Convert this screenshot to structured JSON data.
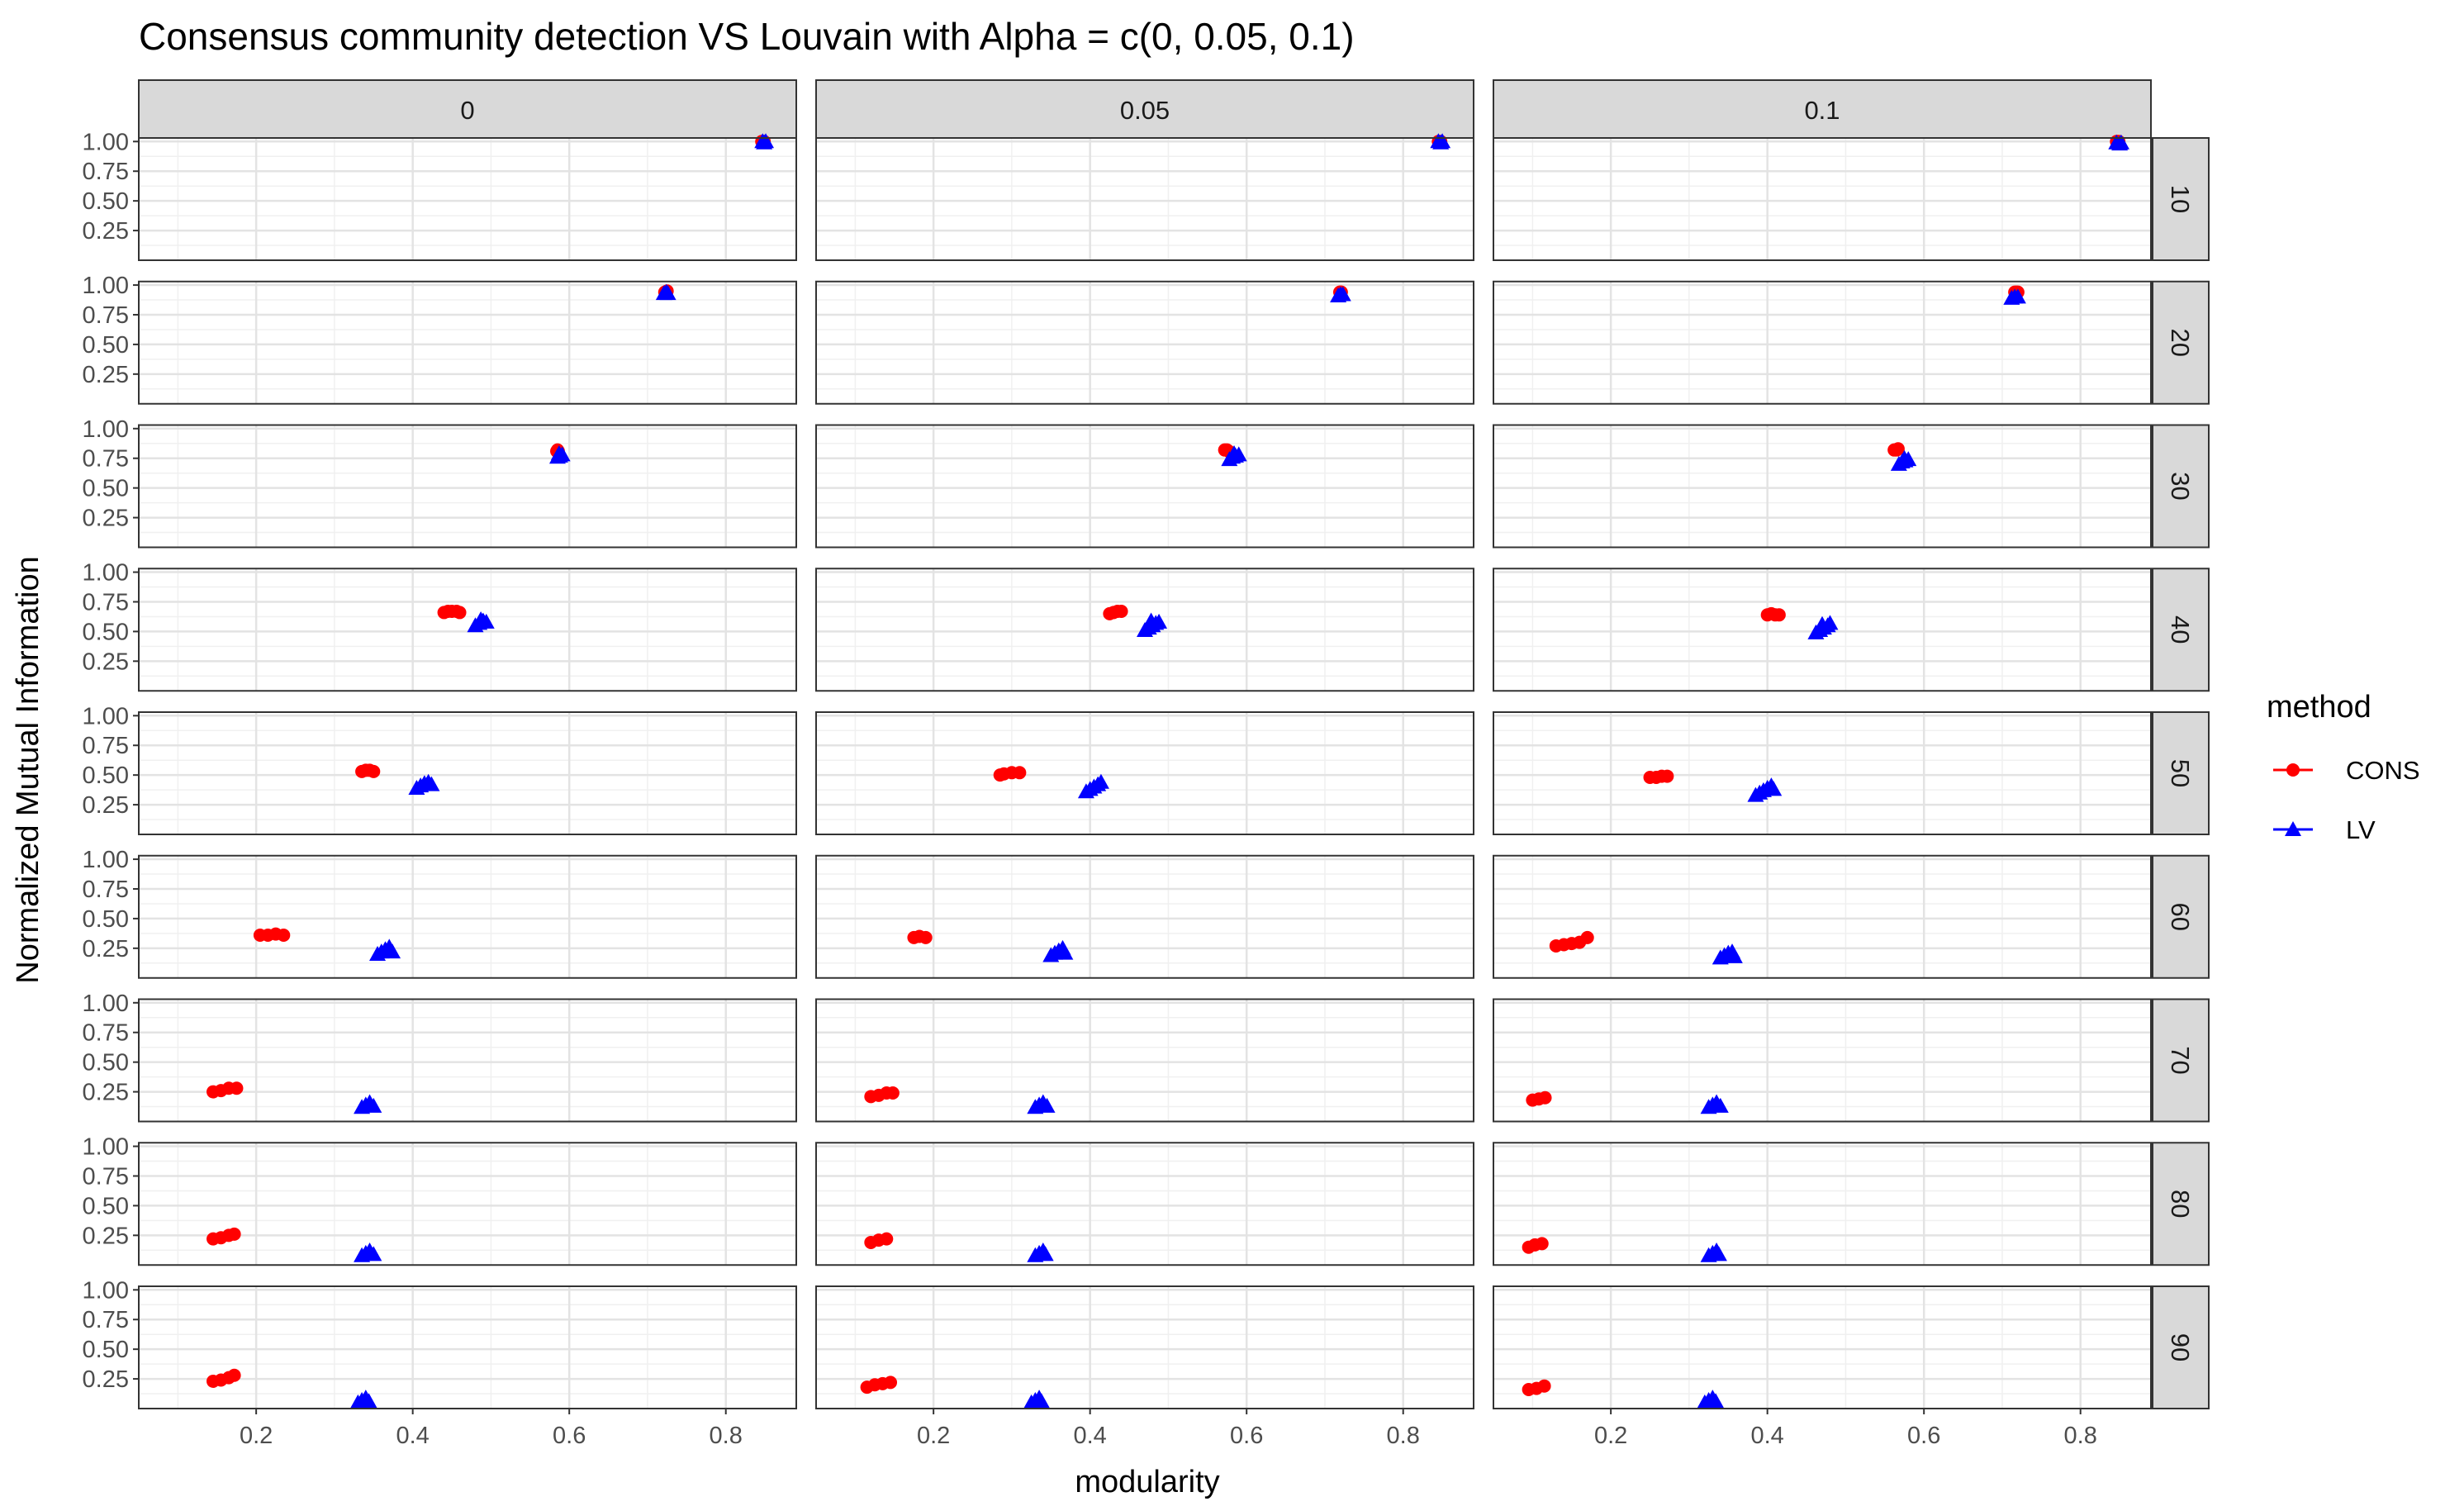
{
  "chart_data": {
    "type": "scatter",
    "title": "Consensus community detection VS Louvain with Alpha = c(0, 0.05, 0.1)",
    "xlabel": "modularity",
    "ylabel": "Normalized Mutual Information",
    "xlim": [
      0.05,
      0.89
    ],
    "ylim": [
      0.0,
      1.03
    ],
    "x_ticks": [
      "0.2",
      "0.4",
      "0.6",
      "0.8"
    ],
    "x_tick_values": [
      0.2,
      0.4,
      0.6,
      0.8
    ],
    "y_ticks": [
      "0.25",
      "0.50",
      "0.75",
      "1.00"
    ],
    "y_tick_values": [
      0.25,
      0.5,
      0.75,
      1.0
    ],
    "grid": true,
    "legend": {
      "title": "method",
      "position": "right",
      "entries": [
        {
          "name": "CONS",
          "color": "#ff0000",
          "shape": "circle"
        },
        {
          "name": "LV",
          "color": "#0000ff",
          "shape": "triangle"
        }
      ]
    },
    "col_facets": [
      "0",
      "0.05",
      "0.1"
    ],
    "row_facets": [
      "10",
      "20",
      "30",
      "40",
      "50",
      "60",
      "70",
      "80",
      "90"
    ],
    "series": [
      {
        "method": "CONS",
        "panels": [
          [
            {
              "x": 0.846,
              "y": 1.0
            },
            {
              "x": 0.846,
              "y": 1.0
            },
            {
              "x": 0.849,
              "y": 1.0
            }
          ],
          [
            {
              "x": 0.846,
              "y": 1.0
            },
            {
              "x": 0.845,
              "y": 1.0
            },
            {
              "x": 0.848,
              "y": 1.0
            }
          ],
          [
            {
              "x": 0.847,
              "y": 1.0
            },
            {
              "x": 0.846,
              "y": 1.0
            },
            {
              "x": 0.849,
              "y": 1.0
            }
          ],
          [
            {
              "x": 0.724,
              "y": 0.94
            },
            {
              "x": 0.722,
              "y": 0.94
            },
            {
              "x": 0.725,
              "y": 0.95
            }
          ],
          [
            {
              "x": 0.721,
              "y": 0.94
            },
            {
              "x": 0.72,
              "y": 0.94
            },
            {
              "x": 0.719,
              "y": 0.94
            }
          ],
          [
            {
              "x": 0.716,
              "y": 0.94
            },
            {
              "x": 0.718,
              "y": 0.94
            },
            {
              "x": 0.72,
              "y": 0.94
            }
          ],
          [
            {
              "x": 0.584,
              "y": 0.81
            },
            {
              "x": 0.586,
              "y": 0.81
            },
            {
              "x": 0.585,
              "y": 0.82
            }
          ],
          [
            {
              "x": 0.572,
              "y": 0.82
            },
            {
              "x": 0.575,
              "y": 0.82
            },
            {
              "x": 0.577,
              "y": 0.81
            }
          ],
          [
            {
              "x": 0.562,
              "y": 0.82
            },
            {
              "x": 0.565,
              "y": 0.82
            },
            {
              "x": 0.567,
              "y": 0.83
            }
          ],
          [
            {
              "x": 0.44,
              "y": 0.66
            },
            {
              "x": 0.445,
              "y": 0.67
            },
            {
              "x": 0.45,
              "y": 0.67
            },
            {
              "x": 0.456,
              "y": 0.67
            },
            {
              "x": 0.46,
              "y": 0.66
            }
          ],
          [
            {
              "x": 0.425,
              "y": 0.65
            },
            {
              "x": 0.43,
              "y": 0.66
            },
            {
              "x": 0.435,
              "y": 0.67
            },
            {
              "x": 0.44,
              "y": 0.67
            }
          ],
          [
            {
              "x": 0.4,
              "y": 0.64
            },
            {
              "x": 0.405,
              "y": 0.65
            },
            {
              "x": 0.41,
              "y": 0.64
            },
            {
              "x": 0.415,
              "y": 0.64
            }
          ],
          [
            {
              "x": 0.335,
              "y": 0.53
            },
            {
              "x": 0.34,
              "y": 0.54
            },
            {
              "x": 0.345,
              "y": 0.54
            },
            {
              "x": 0.35,
              "y": 0.53
            }
          ],
          [
            {
              "x": 0.285,
              "y": 0.5
            },
            {
              "x": 0.29,
              "y": 0.51
            },
            {
              "x": 0.3,
              "y": 0.52
            },
            {
              "x": 0.31,
              "y": 0.52
            }
          ],
          [
            {
              "x": 0.25,
              "y": 0.48
            },
            {
              "x": 0.258,
              "y": 0.48
            },
            {
              "x": 0.265,
              "y": 0.49
            },
            {
              "x": 0.272,
              "y": 0.49
            }
          ],
          [
            {
              "x": 0.205,
              "y": 0.36
            },
            {
              "x": 0.215,
              "y": 0.36
            },
            {
              "x": 0.225,
              "y": 0.37
            },
            {
              "x": 0.235,
              "y": 0.36
            }
          ],
          [
            {
              "x": 0.175,
              "y": 0.34
            },
            {
              "x": 0.182,
              "y": 0.35
            },
            {
              "x": 0.19,
              "y": 0.34
            }
          ],
          [
            {
              "x": 0.13,
              "y": 0.27
            },
            {
              "x": 0.14,
              "y": 0.28
            },
            {
              "x": 0.15,
              "y": 0.29
            },
            {
              "x": 0.16,
              "y": 0.3
            },
            {
              "x": 0.17,
              "y": 0.34
            }
          ],
          [
            {
              "x": 0.145,
              "y": 0.25
            },
            {
              "x": 0.155,
              "y": 0.26
            },
            {
              "x": 0.165,
              "y": 0.28
            },
            {
              "x": 0.175,
              "y": 0.28
            }
          ],
          [
            {
              "x": 0.12,
              "y": 0.21
            },
            {
              "x": 0.13,
              "y": 0.22
            },
            {
              "x": 0.14,
              "y": 0.24
            },
            {
              "x": 0.148,
              "y": 0.24
            }
          ],
          [
            {
              "x": 0.1,
              "y": 0.18
            },
            {
              "x": 0.108,
              "y": 0.19
            },
            {
              "x": 0.116,
              "y": 0.2
            }
          ],
          [
            {
              "x": 0.145,
              "y": 0.22
            },
            {
              "x": 0.155,
              "y": 0.23
            },
            {
              "x": 0.165,
              "y": 0.25
            },
            {
              "x": 0.172,
              "y": 0.26
            }
          ],
          [
            {
              "x": 0.12,
              "y": 0.19
            },
            {
              "x": 0.13,
              "y": 0.21
            },
            {
              "x": 0.14,
              "y": 0.22
            }
          ],
          [
            {
              "x": 0.095,
              "y": 0.15
            },
            {
              "x": 0.103,
              "y": 0.17
            },
            {
              "x": 0.112,
              "y": 0.18
            }
          ],
          [
            {
              "x": 0.145,
              "y": 0.23
            },
            {
              "x": 0.155,
              "y": 0.24
            },
            {
              "x": 0.165,
              "y": 0.26
            },
            {
              "x": 0.172,
              "y": 0.28
            }
          ],
          [
            {
              "x": 0.115,
              "y": 0.18
            },
            {
              "x": 0.125,
              "y": 0.2
            },
            {
              "x": 0.135,
              "y": 0.21
            },
            {
              "x": 0.145,
              "y": 0.22
            }
          ],
          [
            {
              "x": 0.095,
              "y": 0.16
            },
            {
              "x": 0.105,
              "y": 0.17
            },
            {
              "x": 0.115,
              "y": 0.19
            }
          ]
        ]
      },
      {
        "method": "LV",
        "panels": [
          [
            {
              "x": 0.847,
              "y": 1.0
            },
            {
              "x": 0.849,
              "y": 0.99
            },
            {
              "x": 0.851,
              "y": 1.0
            }
          ],
          [
            {
              "x": 0.845,
              "y": 1.0
            },
            {
              "x": 0.848,
              "y": 0.99
            },
            {
              "x": 0.85,
              "y": 1.0
            }
          ],
          [
            {
              "x": 0.846,
              "y": 0.99
            },
            {
              "x": 0.85,
              "y": 0.98
            },
            {
              "x": 0.852,
              "y": 0.99
            }
          ],
          [
            {
              "x": 0.721,
              "y": 0.93
            },
            {
              "x": 0.724,
              "y": 0.94
            },
            {
              "x": 0.726,
              "y": 0.93
            }
          ],
          [
            {
              "x": 0.717,
              "y": 0.91
            },
            {
              "x": 0.72,
              "y": 0.92
            },
            {
              "x": 0.723,
              "y": 0.92
            }
          ],
          [
            {
              "x": 0.712,
              "y": 0.89
            },
            {
              "x": 0.716,
              "y": 0.9
            },
            {
              "x": 0.72,
              "y": 0.9
            }
          ],
          [
            {
              "x": 0.585,
              "y": 0.76
            },
            {
              "x": 0.588,
              "y": 0.77
            },
            {
              "x": 0.591,
              "y": 0.78
            },
            {
              "x": 0.587,
              "y": 0.79
            }
          ],
          [
            {
              "x": 0.578,
              "y": 0.74
            },
            {
              "x": 0.582,
              "y": 0.76
            },
            {
              "x": 0.586,
              "y": 0.77
            },
            {
              "x": 0.59,
              "y": 0.78
            },
            {
              "x": 0.584,
              "y": 0.79
            }
          ],
          [
            {
              "x": 0.568,
              "y": 0.7
            },
            {
              "x": 0.572,
              "y": 0.72
            },
            {
              "x": 0.576,
              "y": 0.73
            },
            {
              "x": 0.58,
              "y": 0.74
            },
            {
              "x": 0.575,
              "y": 0.75
            }
          ],
          [
            {
              "x": 0.48,
              "y": 0.55
            },
            {
              "x": 0.485,
              "y": 0.57
            },
            {
              "x": 0.49,
              "y": 0.59
            },
            {
              "x": 0.494,
              "y": 0.58
            },
            {
              "x": 0.487,
              "y": 0.6
            }
          ],
          [
            {
              "x": 0.47,
              "y": 0.51
            },
            {
              "x": 0.475,
              "y": 0.53
            },
            {
              "x": 0.48,
              "y": 0.55
            },
            {
              "x": 0.484,
              "y": 0.57
            },
            {
              "x": 0.488,
              "y": 0.58
            },
            {
              "x": 0.478,
              "y": 0.59
            }
          ],
          [
            {
              "x": 0.462,
              "y": 0.49
            },
            {
              "x": 0.467,
              "y": 0.51
            },
            {
              "x": 0.472,
              "y": 0.53
            },
            {
              "x": 0.477,
              "y": 0.55
            },
            {
              "x": 0.48,
              "y": 0.57
            },
            {
              "x": 0.47,
              "y": 0.56
            }
          ],
          [
            {
              "x": 0.405,
              "y": 0.39
            },
            {
              "x": 0.41,
              "y": 0.41
            },
            {
              "x": 0.415,
              "y": 0.43
            },
            {
              "x": 0.42,
              "y": 0.44
            },
            {
              "x": 0.424,
              "y": 0.42
            }
          ],
          [
            {
              "x": 0.395,
              "y": 0.36
            },
            {
              "x": 0.4,
              "y": 0.38
            },
            {
              "x": 0.405,
              "y": 0.4
            },
            {
              "x": 0.41,
              "y": 0.42
            },
            {
              "x": 0.414,
              "y": 0.44
            }
          ],
          [
            {
              "x": 0.385,
              "y": 0.33
            },
            {
              "x": 0.39,
              "y": 0.35
            },
            {
              "x": 0.395,
              "y": 0.37
            },
            {
              "x": 0.4,
              "y": 0.39
            },
            {
              "x": 0.405,
              "y": 0.41
            },
            {
              "x": 0.408,
              "y": 0.38
            }
          ],
          [
            {
              "x": 0.355,
              "y": 0.2
            },
            {
              "x": 0.36,
              "y": 0.22
            },
            {
              "x": 0.365,
              "y": 0.24
            },
            {
              "x": 0.37,
              "y": 0.26
            },
            {
              "x": 0.374,
              "y": 0.22
            }
          ],
          [
            {
              "x": 0.35,
              "y": 0.19
            },
            {
              "x": 0.355,
              "y": 0.21
            },
            {
              "x": 0.36,
              "y": 0.23
            },
            {
              "x": 0.365,
              "y": 0.25
            },
            {
              "x": 0.368,
              "y": 0.21
            }
          ],
          [
            {
              "x": 0.34,
              "y": 0.17
            },
            {
              "x": 0.345,
              "y": 0.19
            },
            {
              "x": 0.35,
              "y": 0.21
            },
            {
              "x": 0.355,
              "y": 0.22
            },
            {
              "x": 0.358,
              "y": 0.18
            }
          ],
          [
            {
              "x": 0.335,
              "y": 0.12
            },
            {
              "x": 0.34,
              "y": 0.14
            },
            {
              "x": 0.345,
              "y": 0.16
            },
            {
              "x": 0.35,
              "y": 0.13
            }
          ],
          [
            {
              "x": 0.33,
              "y": 0.12
            },
            {
              "x": 0.335,
              "y": 0.14
            },
            {
              "x": 0.34,
              "y": 0.16
            },
            {
              "x": 0.345,
              "y": 0.13
            }
          ],
          [
            {
              "x": 0.325,
              "y": 0.12
            },
            {
              "x": 0.33,
              "y": 0.14
            },
            {
              "x": 0.335,
              "y": 0.16
            },
            {
              "x": 0.34,
              "y": 0.13
            }
          ],
          [
            {
              "x": 0.335,
              "y": 0.08
            },
            {
              "x": 0.34,
              "y": 0.1
            },
            {
              "x": 0.345,
              "y": 0.12
            },
            {
              "x": 0.35,
              "y": 0.09
            }
          ],
          [
            {
              "x": 0.33,
              "y": 0.08
            },
            {
              "x": 0.335,
              "y": 0.1
            },
            {
              "x": 0.34,
              "y": 0.12
            },
            {
              "x": 0.343,
              "y": 0.09
            }
          ],
          [
            {
              "x": 0.325,
              "y": 0.08
            },
            {
              "x": 0.33,
              "y": 0.1
            },
            {
              "x": 0.335,
              "y": 0.12
            },
            {
              "x": 0.338,
              "y": 0.09
            }
          ],
          [
            {
              "x": 0.33,
              "y": 0.05
            },
            {
              "x": 0.335,
              "y": 0.07
            },
            {
              "x": 0.34,
              "y": 0.09
            },
            {
              "x": 0.344,
              "y": 0.06
            }
          ],
          [
            {
              "x": 0.325,
              "y": 0.05
            },
            {
              "x": 0.33,
              "y": 0.07
            },
            {
              "x": 0.335,
              "y": 0.09
            },
            {
              "x": 0.338,
              "y": 0.06
            }
          ],
          [
            {
              "x": 0.32,
              "y": 0.05
            },
            {
              "x": 0.325,
              "y": 0.07
            },
            {
              "x": 0.33,
              "y": 0.09
            },
            {
              "x": 0.334,
              "y": 0.06
            }
          ]
        ]
      }
    ]
  }
}
